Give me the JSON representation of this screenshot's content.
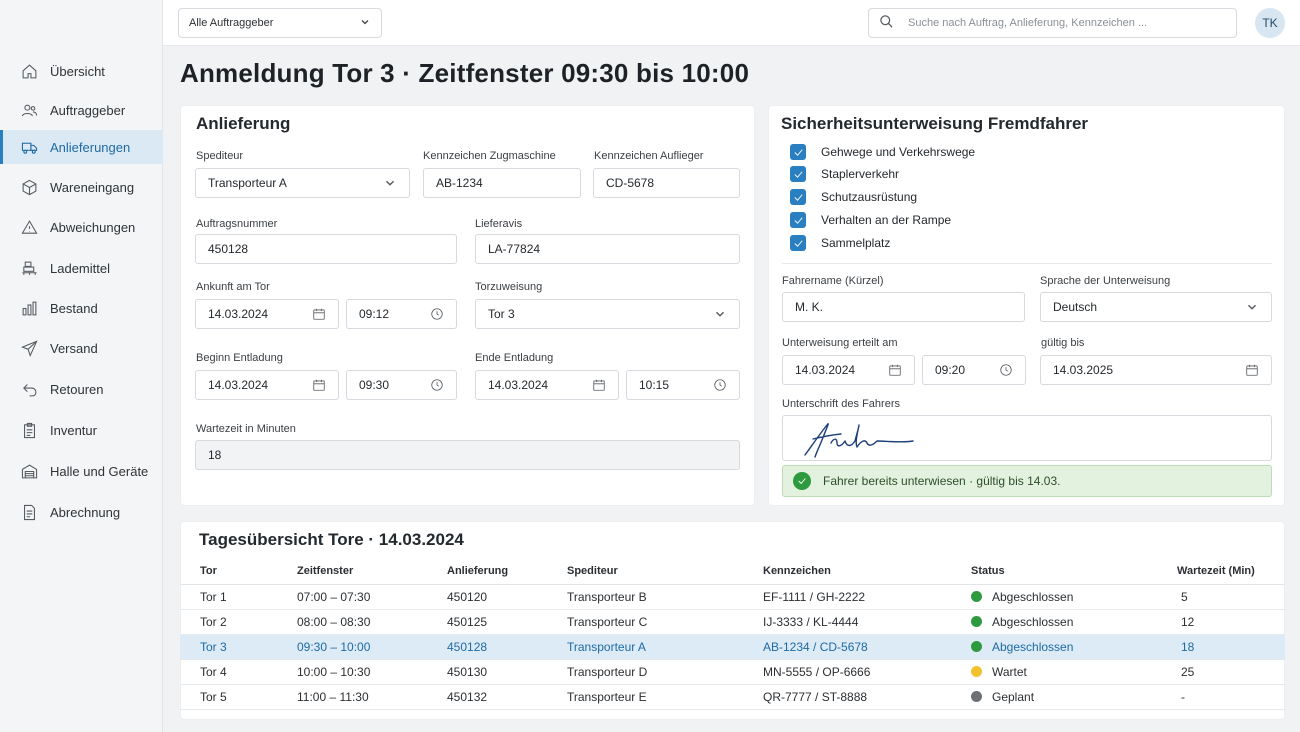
{
  "topbar": {
    "client_select": "Alle Auftraggeber",
    "search_placeholder": "Suche nach Auftrag, Anlieferung, Kennzeichen ...",
    "avatar_initials": "TK"
  },
  "sidebar": {
    "items": [
      {
        "label": "Übersicht",
        "icon": "home-icon"
      },
      {
        "label": "Auftraggeber",
        "icon": "users-icon"
      },
      {
        "label": "Anlieferungen",
        "icon": "truck-icon",
        "active": true
      },
      {
        "label": "Wareneingang",
        "icon": "box-icon"
      },
      {
        "label": "Abweichungen",
        "icon": "warning-icon"
      },
      {
        "label": "Lademittel",
        "icon": "pallet-icon"
      },
      {
        "label": "Bestand",
        "icon": "bar-chart-icon"
      },
      {
        "label": "Versand",
        "icon": "send-icon"
      },
      {
        "label": "Retouren",
        "icon": "return-icon"
      },
      {
        "label": "Inventur",
        "icon": "clipboard-icon"
      },
      {
        "label": "Halle und Geräte",
        "icon": "warehouse-icon"
      },
      {
        "label": "Abrechnung",
        "icon": "invoice-icon"
      }
    ]
  },
  "page_title": "Anmeldung Tor 3 · Zeitfenster 09:30 bis 10:00",
  "delivery": {
    "title": "Anlieferung",
    "carrier_label": "Spediteur",
    "carrier": "Transporteur A",
    "plate_tractor_label": "Kennzeichen Zugmaschine",
    "plate_tractor": "AB-1234",
    "plate_trailer_label": "Kennzeichen Auflieger",
    "plate_trailer": "CD-5678",
    "order_label": "Auftragsnummer",
    "order": "450128",
    "notice_label": "Lieferavis",
    "notice": "LA-77824",
    "arrival_label": "Ankunft am Tor",
    "arrival_date": "14.03.2024",
    "arrival_time": "09:12",
    "door_label": "Torzuweisung",
    "door": "Tor 3",
    "unload_start_label": "Beginn Entladung",
    "unload_start_date": "14.03.2024",
    "unload_start_time": "09:30",
    "unload_end_label": "Ende Entladung",
    "unload_end_date": "14.03.2024",
    "unload_end_time": "10:15",
    "wait_label": "Wartezeit in Minuten",
    "wait": "18"
  },
  "safety": {
    "title": "Sicherheitsunterweisung Fremdfahrer",
    "checks": [
      "Gehwege und Verkehrswege",
      "Staplerverkehr",
      "Schutzausrüstung",
      "Verhalten an der Rampe",
      "Sammelplatz"
    ],
    "driver_label": "Fahrername (Kürzel)",
    "driver": "M. K.",
    "language_label": "Sprache der Unterweisung",
    "language": "Deutsch",
    "issued_label": "Unterweisung erteilt am",
    "issued_date": "14.03.2024",
    "issued_time": "09:20",
    "valid_label": "gültig bis",
    "valid_date": "14.03.2025",
    "signature_label": "Unterschrift des Fahrers",
    "note": "Fahrer bereits unterwiesen · gültig bis 14.03."
  },
  "overview": {
    "title": "Tagesübersicht Tore · 14.03.2024",
    "columns": [
      "Tor",
      "Zeitfenster",
      "Anlieferung",
      "Spediteur",
      "Kennzeichen",
      "Status",
      "Wartezeit (Min)"
    ],
    "rows": [
      {
        "door": "Tor 1",
        "slot": "07:00 – 07:30",
        "delivery": "450120",
        "carrier": "Transporteur B",
        "plates": "EF-1111 / GH-2222",
        "status": "Abgeschlossen",
        "status_color": "#2e9a3f",
        "wait": "5"
      },
      {
        "door": "Tor 2",
        "slot": "08:00 – 08:30",
        "delivery": "450125",
        "carrier": "Transporteur C",
        "plates": "IJ-3333 / KL-4444",
        "status": "Abgeschlossen",
        "status_color": "#2e9a3f",
        "wait": "12"
      },
      {
        "door": "Tor 3",
        "slot": "09:30 – 10:00",
        "delivery": "450128",
        "carrier": "Transporteur A",
        "plates": "AB-1234 / CD-5678",
        "status": "Abgeschlossen",
        "status_color": "#2e9a3f",
        "wait": "18",
        "highlight": true
      },
      {
        "door": "Tor 4",
        "slot": "10:00 – 10:30",
        "delivery": "450130",
        "carrier": "Transporteur D",
        "plates": "MN-5555 / OP-6666",
        "status": "Wartet",
        "status_color": "#f2c12e",
        "wait": "25"
      },
      {
        "door": "Tor 5",
        "slot": "11:00 – 11:30",
        "delivery": "450132",
        "carrier": "Transporteur E",
        "plates": "QR-7777 / ST-8888",
        "status": "Geplant",
        "status_color": "#6b7075",
        "wait": "-"
      }
    ]
  }
}
